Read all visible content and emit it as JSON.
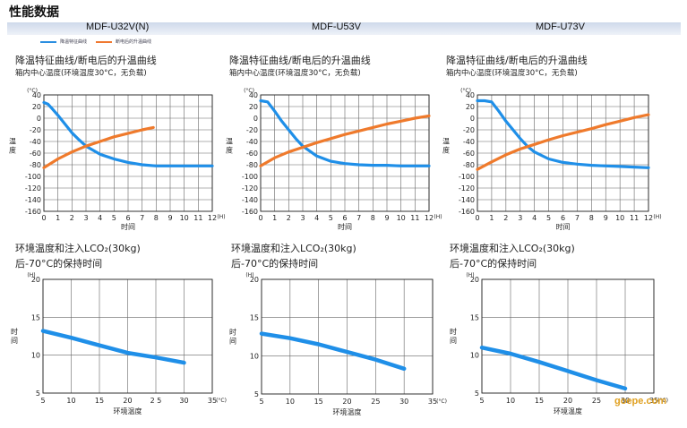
{
  "page": {
    "title": "性能数据",
    "watermark": "goepe.com"
  },
  "models": [
    "MDF-U32V(N)",
    "MDF-U53V",
    "MDF-U73V"
  ],
  "legend": [
    {
      "label": "降温特征曲线",
      "color": "#2a8ee0"
    },
    {
      "label": "断电后的升温曲线",
      "color": "#f07830"
    }
  ],
  "colors": {
    "cooling": "#1f8fe8",
    "warming": "#ef7a2c",
    "hold": "#1f8fe8",
    "grid": "#666666"
  },
  "cooling_title": "降温特征曲线/断电后的升温曲线",
  "cooling_subtitle": "箱内中心温度(环境温度30°C，无负载)",
  "hold_title_1": "环境温度和注入LCO₂(30kg)",
  "hold_title_2": "后-70°C的保持时间",
  "chart_data": [
    {
      "type": "line",
      "model": "MDF-U32V(N)",
      "xlabel": "时间",
      "ylabel": "温度",
      "yunit": "(°C)",
      "xunit": "(H)",
      "xlim": [
        0,
        12
      ],
      "ylim": [
        -160,
        40
      ],
      "xticks": [
        "0",
        "1",
        "2",
        "3",
        "4",
        "5",
        "6",
        "7",
        "8",
        "9",
        "10",
        "11",
        "12"
      ],
      "yticks": [
        "40",
        "20",
        "0",
        "-20",
        "-40",
        "-60",
        "-80",
        "-100",
        "-120",
        "-140",
        "-160"
      ],
      "series": [
        {
          "role": "cooling",
          "x": [
            0,
            0.3,
            0.6,
            1,
            1.5,
            2,
            2.5,
            3,
            4,
            5,
            6,
            7,
            8,
            9,
            10,
            11,
            12
          ],
          "y": [
            27,
            24,
            16,
            5,
            -10,
            -25,
            -37,
            -48,
            -62,
            -70,
            -76,
            -80,
            -82,
            -82,
            -82,
            -82,
            -82
          ]
        },
        {
          "role": "warming",
          "x": [
            0,
            1,
            2,
            3,
            4,
            5,
            6,
            7,
            7.8
          ],
          "y": [
            -85,
            -70,
            -58,
            -48,
            -40,
            -32,
            -26,
            -20,
            -16
          ]
        }
      ]
    },
    {
      "type": "line",
      "model": "MDF-U53V",
      "xlabel": "时间",
      "ylabel": "温度",
      "yunit": "(°C)",
      "xunit": "(H)",
      "xlim": [
        0,
        12
      ],
      "ylim": [
        -160,
        40
      ],
      "xticks": [
        "0",
        "1",
        "2",
        "3",
        "4",
        "5",
        "6",
        "7",
        "8",
        "9",
        "10",
        "11",
        "12"
      ],
      "yticks": [
        "40",
        "20",
        "0",
        "-20",
        "-40",
        "-60",
        "-80",
        "-100",
        "-120",
        "-140",
        "-160"
      ],
      "series": [
        {
          "role": "cooling",
          "x": [
            0,
            0.5,
            1,
            1.5,
            2,
            2.5,
            3,
            4,
            5,
            6,
            7,
            8,
            9,
            10,
            11,
            12
          ],
          "y": [
            30,
            28,
            12,
            -5,
            -20,
            -35,
            -48,
            -65,
            -74,
            -78,
            -80,
            -81,
            -81,
            -82,
            -82,
            -82
          ]
        },
        {
          "role": "warming",
          "x": [
            0,
            1,
            2,
            3,
            4,
            5,
            6,
            7,
            8,
            9,
            10,
            11,
            12
          ],
          "y": [
            -82,
            -68,
            -58,
            -50,
            -42,
            -35,
            -28,
            -22,
            -16,
            -10,
            -5,
            0,
            4
          ]
        }
      ]
    },
    {
      "type": "line",
      "model": "MDF-U73V",
      "xlabel": "时间",
      "ylabel": "温度",
      "yunit": "(°C)",
      "xunit": "(H)",
      "xlim": [
        0,
        12
      ],
      "ylim": [
        -160,
        40
      ],
      "xticks": [
        "0",
        "1",
        "2",
        "3",
        "4",
        "5",
        "6",
        "7",
        "8",
        "9",
        "10",
        "11",
        "12"
      ],
      "yticks": [
        "40",
        "20",
        "0",
        "-20",
        "-40",
        "-60",
        "-80",
        "-100",
        "-120",
        "-140",
        "-160"
      ],
      "series": [
        {
          "role": "cooling",
          "x": [
            0,
            0.5,
            1,
            1.5,
            2,
            2.5,
            3,
            3.5,
            4,
            5,
            6,
            7,
            8,
            9,
            10,
            11,
            12
          ],
          "y": [
            30,
            30,
            28,
            12,
            -5,
            -20,
            -35,
            -48,
            -58,
            -70,
            -76,
            -79,
            -81,
            -82,
            -83,
            -84,
            -85
          ]
        },
        {
          "role": "warming",
          "x": [
            0,
            1,
            2,
            3,
            4,
            5,
            6,
            7,
            8,
            9,
            10,
            11,
            12
          ],
          "y": [
            -88,
            -75,
            -63,
            -53,
            -45,
            -37,
            -30,
            -24,
            -18,
            -11,
            -5,
            1,
            6
          ]
        }
      ]
    },
    {
      "type": "line",
      "model": "MDF-U32V(N)",
      "xlabel": "环境温度",
      "ylabel": "时间",
      "yunit": "(H)",
      "xunit": "(°C)",
      "xlim": [
        5,
        35
      ],
      "ylim": [
        5,
        20
      ],
      "xticks": [
        "5",
        "10",
        "15",
        "20",
        "2 5",
        "30",
        "35"
      ],
      "yticks": [
        "20",
        "15",
        "10",
        "5"
      ],
      "series": [
        {
          "role": "hold",
          "x": [
            5,
            10,
            15,
            20,
            25,
            30
          ],
          "y": [
            13.2,
            12.3,
            11.3,
            10.3,
            9.7,
            9.0
          ]
        }
      ]
    },
    {
      "type": "line",
      "model": "MDF-U53V",
      "xlabel": "环境温度",
      "ylabel": "时间",
      "yunit": "(H)",
      "xunit": "(°C)",
      "xlim": [
        5,
        35
      ],
      "ylim": [
        5,
        20
      ],
      "xticks": [
        "5",
        "10",
        "15",
        "20",
        "25",
        "30",
        "35"
      ],
      "yticks": [
        "20",
        "15",
        "10",
        "5"
      ],
      "series": [
        {
          "role": "hold",
          "x": [
            5,
            10,
            15,
            20,
            25,
            30
          ],
          "y": [
            12.9,
            12.3,
            11.5,
            10.5,
            9.5,
            8.3
          ]
        }
      ]
    },
    {
      "type": "line",
      "model": "MDF-U73V",
      "xlabel": "环境温度",
      "ylabel": "时间",
      "yunit": "(H)",
      "xunit": "(°C)",
      "xlim": [
        5,
        35
      ],
      "ylim": [
        5,
        20
      ],
      "xticks": [
        "5",
        "10",
        "15",
        "20",
        "25",
        "30",
        "35"
      ],
      "yticks": [
        "20",
        "15",
        "10",
        "5"
      ],
      "series": [
        {
          "role": "hold",
          "x": [
            5,
            10,
            15,
            20,
            25,
            30
          ],
          "y": [
            11.0,
            10.2,
            9.1,
            7.9,
            6.7,
            5.6
          ]
        }
      ]
    }
  ]
}
